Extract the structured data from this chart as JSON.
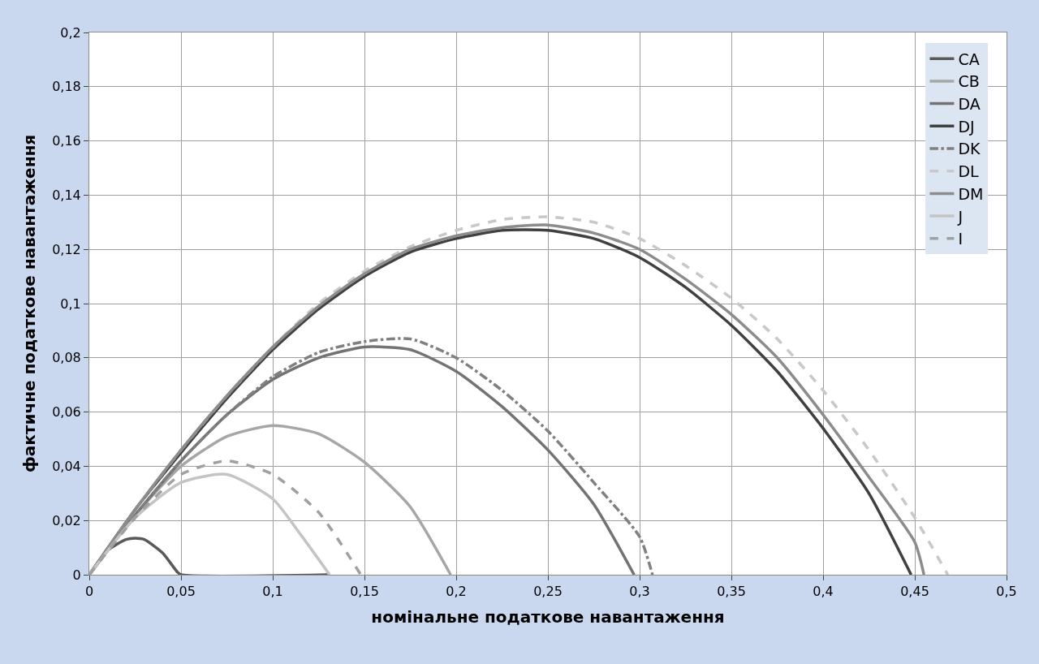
{
  "chart_data": {
    "type": "line",
    "xlabel": "номінальне податкове навантаження",
    "ylabel": "фактичне податкове навантаження",
    "xlim": [
      0,
      0.5
    ],
    "ylim": [
      0,
      0.2
    ],
    "xticks": [
      0,
      {
        "value": 0.05,
        "label": "0,05"
      },
      {
        "value": 0.1,
        "label": "0,1"
      },
      {
        "value": 0.15,
        "label": "0,15"
      },
      {
        "value": 0.2,
        "label": "0,2"
      },
      {
        "value": 0.25,
        "label": "0,25"
      },
      {
        "value": 0.3,
        "label": "0,3"
      },
      {
        "value": 0.35,
        "label": "0,35"
      },
      {
        "value": 0.4,
        "label": "0,4"
      },
      {
        "value": 0.45,
        "label": "0,45"
      },
      {
        "value": 0.5,
        "label": "0,5"
      }
    ],
    "yticks": [
      0,
      {
        "value": 0.02,
        "label": "0,02"
      },
      {
        "value": 0.04,
        "label": "0,04"
      },
      {
        "value": 0.06,
        "label": "0,06"
      },
      {
        "value": 0.08,
        "label": "0,08"
      },
      {
        "value": 0.1,
        "label": "0,1"
      },
      {
        "value": 0.12,
        "label": "0,12"
      },
      {
        "value": 0.14,
        "label": "0,14"
      },
      {
        "value": 0.16,
        "label": "0,16"
      },
      {
        "value": 0.18,
        "label": "0,18"
      },
      {
        "value": 0.2,
        "label": "0,2"
      }
    ],
    "grid": true,
    "legend": "top right",
    "marker": "none",
    "series": [
      {
        "name": "CA",
        "color": "#595959",
        "line_style": "solid",
        "x": [
          0,
          0.01,
          0.02,
          0.025,
          0.03,
          0.04,
          0.048,
          0.05,
          0.13
        ],
        "values": [
          0,
          0.009,
          0.013,
          0.0135,
          0.013,
          0.008,
          0.001,
          0,
          0
        ]
      },
      {
        "name": "CB",
        "color": "#a6a6a6",
        "line_style": "solid",
        "x": [
          0,
          0.025,
          0.05,
          0.075,
          0.1,
          0.125,
          0.15,
          0.175,
          0.197
        ],
        "values": [
          0,
          0.022,
          0.04,
          0.051,
          0.055,
          0.052,
          0.0415,
          0.025,
          0
        ]
      },
      {
        "name": "DA",
        "color": "#737373",
        "line_style": "solid",
        "x": [
          0,
          0.025,
          0.05,
          0.075,
          0.1,
          0.125,
          0.15,
          0.175,
          0.2,
          0.225,
          0.25,
          0.275,
          0.297
        ],
        "values": [
          0,
          0.022,
          0.042,
          0.059,
          0.072,
          0.08,
          0.084,
          0.083,
          0.075,
          0.062,
          0.046,
          0.026,
          0
        ]
      },
      {
        "name": "DJ",
        "color": "#404040",
        "line_style": "solid",
        "x": [
          0,
          0.025,
          0.05,
          0.075,
          0.1,
          0.125,
          0.15,
          0.175,
          0.2,
          0.225,
          0.25,
          0.275,
          0.3,
          0.325,
          0.35,
          0.375,
          0.4,
          0.425,
          0.448
        ],
        "values": [
          0,
          0.024,
          0.045,
          0.065,
          0.083,
          0.098,
          0.11,
          0.119,
          0.124,
          0.127,
          0.127,
          0.124,
          0.117,
          0.106,
          0.092,
          0.075,
          0.054,
          0.03,
          0
        ]
      },
      {
        "name": "DK",
        "color": "#808080",
        "line_style": "dashdot",
        "x": [
          0,
          0.025,
          0.05,
          0.075,
          0.1,
          0.125,
          0.15,
          0.175,
          0.2,
          0.225,
          0.25,
          0.275,
          0.3,
          0.307
        ],
        "values": [
          0,
          0.022,
          0.042,
          0.059,
          0.073,
          0.082,
          0.086,
          0.087,
          0.08,
          0.068,
          0.053,
          0.034,
          0.014,
          0
        ]
      },
      {
        "name": "DL",
        "color": "#c8c8c8",
        "line_style": "dashed",
        "x": [
          0,
          0.025,
          0.05,
          0.075,
          0.1,
          0.125,
          0.15,
          0.175,
          0.2,
          0.225,
          0.25,
          0.275,
          0.3,
          0.325,
          0.35,
          0.375,
          0.4,
          0.425,
          0.45,
          0.468
        ],
        "values": [
          0,
          0.024,
          0.046,
          0.066,
          0.084,
          0.1,
          0.112,
          0.121,
          0.127,
          0.131,
          0.132,
          0.13,
          0.124,
          0.114,
          0.102,
          0.087,
          0.068,
          0.046,
          0.021,
          0
        ]
      },
      {
        "name": "DM",
        "color": "#8c8c8c",
        "line_style": "solid",
        "x": [
          0,
          0.025,
          0.05,
          0.075,
          0.1,
          0.125,
          0.15,
          0.175,
          0.2,
          0.225,
          0.25,
          0.275,
          0.3,
          0.325,
          0.35,
          0.375,
          0.4,
          0.425,
          0.45,
          0.455
        ],
        "values": [
          0,
          0.024,
          0.046,
          0.066,
          0.084,
          0.099,
          0.111,
          0.12,
          0.125,
          0.128,
          0.129,
          0.126,
          0.12,
          0.109,
          0.096,
          0.08,
          0.059,
          0.036,
          0.012,
          0
        ]
      },
      {
        "name": "J",
        "color": "#c4c4c4",
        "line_style": "solid",
        "x": [
          0,
          0.025,
          0.05,
          0.075,
          0.1,
          0.115,
          0.131
        ],
        "values": [
          0,
          0.021,
          0.034,
          0.037,
          0.028,
          0.015,
          0
        ]
      },
      {
        "name": "I",
        "color": "#a0a0a0",
        "line_style": "dashed",
        "x": [
          0,
          0.025,
          0.05,
          0.075,
          0.1,
          0.125,
          0.148
        ],
        "values": [
          0,
          0.021,
          0.037,
          0.042,
          0.037,
          0.023,
          0
        ]
      }
    ]
  }
}
